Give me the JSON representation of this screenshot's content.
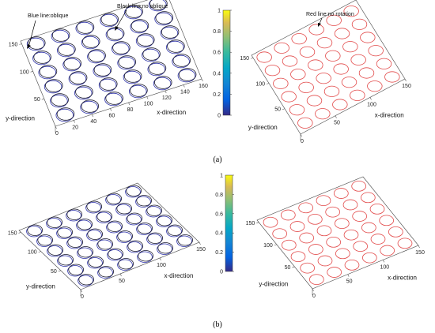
{
  "panels": {
    "a": {
      "label": "(a)",
      "annotations": {
        "blue": "Blue line:oblique",
        "black": "Black line:no oblique",
        "red": "Red line:no rotation"
      },
      "left": {
        "xlabel": "x-direction",
        "ylabel": "y-direction",
        "xticks": [
          "0",
          "20",
          "40",
          "60",
          "80",
          "100",
          "120",
          "140",
          "160"
        ],
        "yticks": [
          "50",
          "100",
          "150"
        ]
      },
      "right": {
        "xlabel": "x-direction",
        "ylabel": "y-direction",
        "xticks": [
          "0",
          "50",
          "100",
          "150"
        ],
        "yticks": [
          "50",
          "100",
          "150"
        ]
      },
      "colorbar": {
        "ticks": [
          "0",
          "0.2",
          "0.4",
          "0.6",
          "0.8",
          "1"
        ]
      }
    },
    "b": {
      "label": "(b)",
      "left": {
        "xlabel": "x-direction",
        "ylabel": "y-direction",
        "xticks": [
          "0",
          "50",
          "100",
          "150"
        ],
        "yticks": [
          "50",
          "100",
          "150"
        ]
      },
      "right": {
        "xlabel": "x-direction",
        "ylabel": "y-direction",
        "xticks": [
          "0",
          "50",
          "100",
          "150"
        ],
        "yticks": [
          "50",
          "100",
          "150"
        ]
      },
      "colorbar": {
        "ticks": [
          "0",
          "0.2",
          "0.4",
          "0.6",
          "0.8",
          "1"
        ]
      }
    }
  },
  "colors": {
    "blue": "#2a2fa8",
    "black": "#1a1a2e",
    "red": "#e24a4a"
  }
}
